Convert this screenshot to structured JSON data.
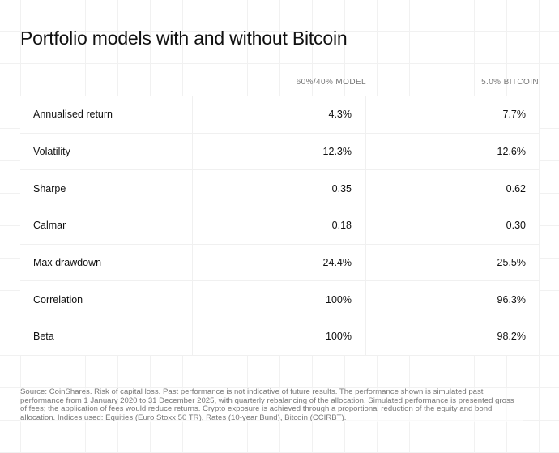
{
  "title": "Portfolio models with and without Bitcoin",
  "columns": [
    "60%/40% MODEL",
    "5.0% BITCOIN"
  ],
  "rows": [
    {
      "label": "Annualised return",
      "model": "4.3%",
      "bitcoin": "7.7%"
    },
    {
      "label": "Volatility",
      "model": "12.3%",
      "bitcoin": "12.6%"
    },
    {
      "label": "Sharpe",
      "model": "0.35",
      "bitcoin": "0.62"
    },
    {
      "label": "Calmar",
      "model": "0.18",
      "bitcoin": "0.30"
    },
    {
      "label": "Max drawdown",
      "model": "-24.4%",
      "bitcoin": "-25.5%"
    },
    {
      "label": "Correlation",
      "model": "100%",
      "bitcoin": "96.3%"
    },
    {
      "label": "Beta",
      "model": "100%",
      "bitcoin": "98.2%"
    }
  ],
  "footnote": "Source: CoinShares. Risk of capital loss. Past performance is not indicative of future results. The performance shown is simulated past performance from 1 January 2020 to 31 December 2025, with quarterly rebalancing of the allocation. Simulated performance is presented gross of fees; the application of fees would reduce returns. Crypto exposure is achieved through a proportional reduction of the equity and bond allocation. Indices used: Equities (Euro Stoxx 50 TR), Rates (10-year Bund), Bitcoin (CCIRBT)."
}
